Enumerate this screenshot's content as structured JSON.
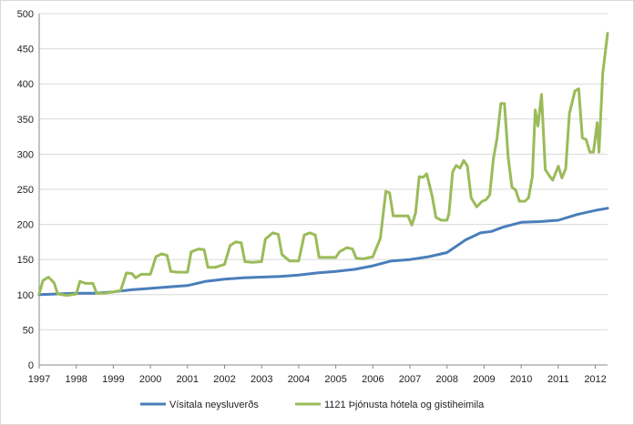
{
  "chart_data": {
    "type": "line",
    "title": "",
    "xlabel": "",
    "ylabel": "",
    "x_ticks": [
      "1997",
      "1998",
      "1999",
      "2000",
      "2001",
      "2002",
      "2003",
      "2004",
      "2005",
      "2006",
      "2007",
      "2008",
      "2009",
      "2010",
      "2011",
      "2012"
    ],
    "y_ticks": [
      0,
      50,
      100,
      150,
      200,
      250,
      300,
      350,
      400,
      450,
      500
    ],
    "xlim": [
      1997.0,
      2012.33
    ],
    "ylim": [
      0,
      500
    ],
    "grid": "horizontal",
    "legend_position": "bottom",
    "series": [
      {
        "name": "Vísitala neysluverðs",
        "color": "#4a7ebb",
        "points": [
          [
            1997.0,
            100
          ],
          [
            1997.5,
            101
          ],
          [
            1998.0,
            102
          ],
          [
            1998.5,
            102
          ],
          [
            1999.0,
            104
          ],
          [
            1999.5,
            107
          ],
          [
            2000.0,
            109
          ],
          [
            2000.5,
            111
          ],
          [
            2001.0,
            113
          ],
          [
            2001.5,
            119
          ],
          [
            2002.0,
            122
          ],
          [
            2002.5,
            124
          ],
          [
            2003.0,
            125
          ],
          [
            2003.5,
            126
          ],
          [
            2004.0,
            128
          ],
          [
            2004.5,
            131
          ],
          [
            2005.0,
            133
          ],
          [
            2005.5,
            136
          ],
          [
            2006.0,
            141
          ],
          [
            2006.5,
            148
          ],
          [
            2007.0,
            150
          ],
          [
            2007.5,
            154
          ],
          [
            2008.0,
            160
          ],
          [
            2008.5,
            178
          ],
          [
            2008.9,
            188
          ],
          [
            2009.2,
            190
          ],
          [
            2009.5,
            196
          ],
          [
            2010.0,
            203
          ],
          [
            2010.5,
            204
          ],
          [
            2011.0,
            206
          ],
          [
            2011.5,
            214
          ],
          [
            2012.0,
            220
          ],
          [
            2012.33,
            223
          ]
        ]
      },
      {
        "name": "1121 Þjónusta hótela og gistiheimila",
        "color": "#9bbb59",
        "points": [
          [
            1997.0,
            101
          ],
          [
            1997.1,
            120
          ],
          [
            1997.25,
            125
          ],
          [
            1997.4,
            117
          ],
          [
            1997.5,
            101
          ],
          [
            1997.75,
            99
          ],
          [
            1998.0,
            101
          ],
          [
            1998.1,
            119
          ],
          [
            1998.25,
            116
          ],
          [
            1998.45,
            116
          ],
          [
            1998.55,
            102
          ],
          [
            1998.75,
            102
          ],
          [
            1999.0,
            104
          ],
          [
            1999.2,
            106
          ],
          [
            1999.35,
            131
          ],
          [
            1999.5,
            130
          ],
          [
            1999.6,
            124
          ],
          [
            1999.75,
            129
          ],
          [
            2000.0,
            129
          ],
          [
            2000.15,
            154
          ],
          [
            2000.3,
            158
          ],
          [
            2000.45,
            156
          ],
          [
            2000.55,
            133
          ],
          [
            2000.75,
            132
          ],
          [
            2001.0,
            132
          ],
          [
            2001.1,
            161
          ],
          [
            2001.3,
            165
          ],
          [
            2001.45,
            164
          ],
          [
            2001.55,
            139
          ],
          [
            2001.75,
            139
          ],
          [
            2002.0,
            143
          ],
          [
            2002.15,
            170
          ],
          [
            2002.3,
            175
          ],
          [
            2002.45,
            174
          ],
          [
            2002.55,
            147
          ],
          [
            2002.75,
            146
          ],
          [
            2003.0,
            147
          ],
          [
            2003.1,
            179
          ],
          [
            2003.3,
            188
          ],
          [
            2003.45,
            186
          ],
          [
            2003.55,
            157
          ],
          [
            2003.75,
            148
          ],
          [
            2004.0,
            148
          ],
          [
            2004.15,
            185
          ],
          [
            2004.3,
            188
          ],
          [
            2004.45,
            185
          ],
          [
            2004.55,
            153
          ],
          [
            2004.75,
            153
          ],
          [
            2005.0,
            153
          ],
          [
            2005.1,
            161
          ],
          [
            2005.3,
            167
          ],
          [
            2005.45,
            165
          ],
          [
            2005.55,
            152
          ],
          [
            2005.75,
            151
          ],
          [
            2006.0,
            154
          ],
          [
            2006.2,
            180
          ],
          [
            2006.35,
            247
          ],
          [
            2006.45,
            245
          ],
          [
            2006.55,
            212
          ],
          [
            2006.75,
            212
          ],
          [
            2006.95,
            212
          ],
          [
            2007.05,
            199
          ],
          [
            2007.15,
            216
          ],
          [
            2007.25,
            268
          ],
          [
            2007.35,
            267
          ],
          [
            2007.45,
            272
          ],
          [
            2007.6,
            240
          ],
          [
            2007.7,
            210
          ],
          [
            2007.85,
            206
          ],
          [
            2008.0,
            206
          ],
          [
            2008.05,
            215
          ],
          [
            2008.15,
            275
          ],
          [
            2008.25,
            284
          ],
          [
            2008.35,
            280
          ],
          [
            2008.45,
            291
          ],
          [
            2008.55,
            283
          ],
          [
            2008.65,
            238
          ],
          [
            2008.8,
            225
          ],
          [
            2008.95,
            233
          ],
          [
            2009.05,
            235
          ],
          [
            2009.15,
            242
          ],
          [
            2009.25,
            293
          ],
          [
            2009.35,
            323
          ],
          [
            2009.45,
            372
          ],
          [
            2009.55,
            372
          ],
          [
            2009.65,
            295
          ],
          [
            2009.75,
            253
          ],
          [
            2009.85,
            249
          ],
          [
            2009.95,
            233
          ],
          [
            2010.1,
            233
          ],
          [
            2010.2,
            238
          ],
          [
            2010.3,
            268
          ],
          [
            2010.38,
            363
          ],
          [
            2010.45,
            340
          ],
          [
            2010.55,
            385
          ],
          [
            2010.65,
            278
          ],
          [
            2010.75,
            270
          ],
          [
            2010.85,
            263
          ],
          [
            2011.0,
            283
          ],
          [
            2011.1,
            266
          ],
          [
            2011.2,
            279
          ],
          [
            2011.3,
            358
          ],
          [
            2011.45,
            390
          ],
          [
            2011.55,
            393
          ],
          [
            2011.65,
            323
          ],
          [
            2011.75,
            321
          ],
          [
            2011.85,
            303
          ],
          [
            2011.95,
            303
          ],
          [
            2012.05,
            345
          ],
          [
            2012.1,
            303
          ],
          [
            2012.2,
            415
          ],
          [
            2012.33,
            472
          ]
        ]
      }
    ]
  }
}
